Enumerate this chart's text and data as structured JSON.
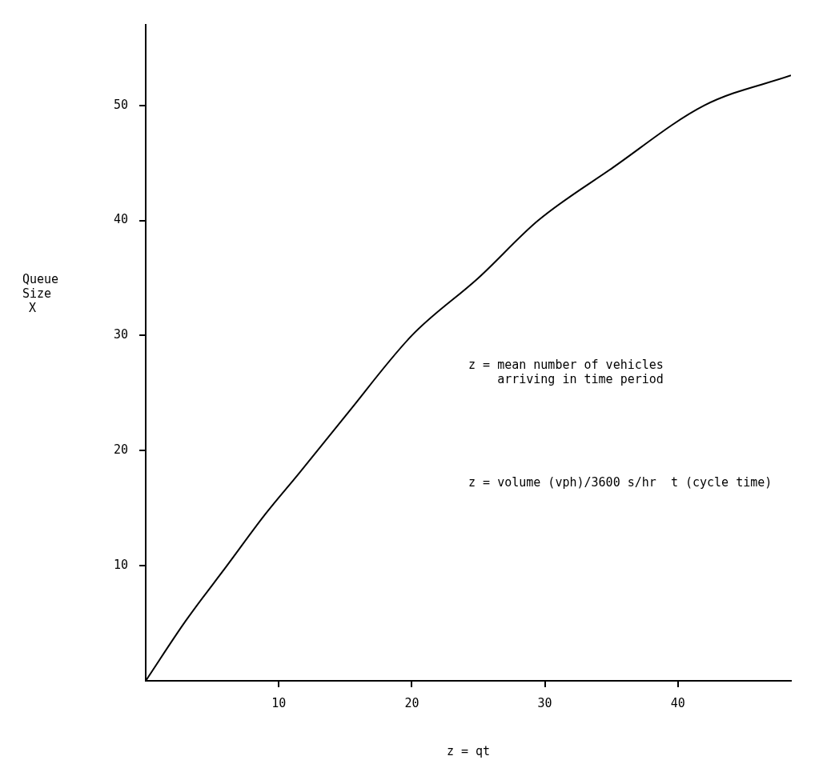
{
  "chart_data": {
    "type": "line",
    "xlabel": "z = qt",
    "ylabel": "Queue Size X",
    "x": [
      0,
      3,
      6.1,
      9,
      11.5,
      15,
      20,
      25,
      29.5,
      35,
      42,
      48.5
    ],
    "series": [
      {
        "color": "#000000",
        "values": [
          0,
          5.2,
          10,
          14.5,
          18,
          23,
          30,
          35,
          40,
          44.5,
          50,
          52.6
        ]
      }
    ],
    "xlim": [
      0,
      48.5
    ],
    "xticks": [
      10,
      20,
      30,
      40
    ],
    "ylim": [
      0,
      57
    ],
    "yticks": [
      10,
      20,
      30,
      40,
      50
    ],
    "grid": false,
    "legend": false,
    "marker": "none",
    "line_style": "solid",
    "annotations": [
      "z = mean number of vehicles\n    arriving in time period",
      "z = volume (vph)/3600 s/hr  t (cycle time)"
    ]
  }
}
